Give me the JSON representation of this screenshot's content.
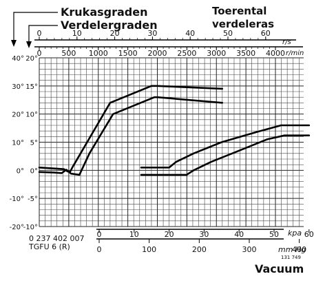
{
  "labels": {
    "left_label_1": "Krukasgraden",
    "left_label_2": "Verdelergraden",
    "right_title_1": "Toerental",
    "right_title_2": "verdeleras",
    "rps_unit": "r/s",
    "rpm_unit": "r/min",
    "kpa_unit": "kpa",
    "mmhg_unit": "mm Hg",
    "part_number": "0 237 402 007",
    "model": "TGFU 6 (R)",
    "small_code": "131 749",
    "vacuum_title": "Vacuum"
  },
  "chart_data": {
    "type": "line",
    "rpm_ticks": [
      0,
      500,
      1000,
      1500,
      2000,
      2500,
      3000,
      3500,
      4000
    ],
    "rps_ticks": [
      0,
      10,
      20,
      30,
      40,
      50,
      60
    ],
    "crank_ticks": [
      "40°",
      "30°",
      "20°",
      "10°",
      "0°",
      "-10°",
      "-20°"
    ],
    "distributor_ticks": [
      "20°",
      "15°",
      "10°",
      "5°",
      "0°",
      "-5°",
      "-10°"
    ],
    "kpa_ticks": [
      0,
      10,
      20,
      30,
      40,
      50,
      60
    ],
    "mmhg_ticks": [
      0,
      100,
      200,
      300,
      400
    ],
    "ylim_distributor": [
      -10,
      20
    ],
    "grid": true,
    "series": [
      {
        "axis": "rpm",
        "x": [
          0,
          300,
          420,
          480,
          520,
          560,
          700,
          1200,
          1900,
          2000,
          3100
        ],
        "y": [
          0.5,
          0.3,
          0.2,
          -0.2,
          -0.3,
          0.5,
          3,
          12,
          15,
          15,
          14.5
        ]
      },
      {
        "axis": "rpm",
        "x": [
          0,
          250,
          380,
          460,
          540,
          680,
          850,
          1250,
          1950,
          2000,
          3100
        ],
        "y": [
          -0.3,
          -0.4,
          -0.5,
          0.1,
          -0.6,
          -0.8,
          3,
          10,
          13,
          13,
          12
        ]
      },
      {
        "axis": "kpa",
        "x": [
          12,
          20,
          22,
          27,
          35,
          45,
          52,
          60
        ],
        "y": [
          0.5,
          0.5,
          1.5,
          3,
          5,
          6.8,
          8,
          8
        ]
      },
      {
        "axis": "kpa",
        "x": [
          12,
          25,
          27,
          32,
          40,
          48,
          53,
          60
        ],
        "y": [
          -0.8,
          -0.8,
          0,
          1.5,
          3.5,
          5.5,
          6.2,
          6.2
        ]
      }
    ]
  }
}
